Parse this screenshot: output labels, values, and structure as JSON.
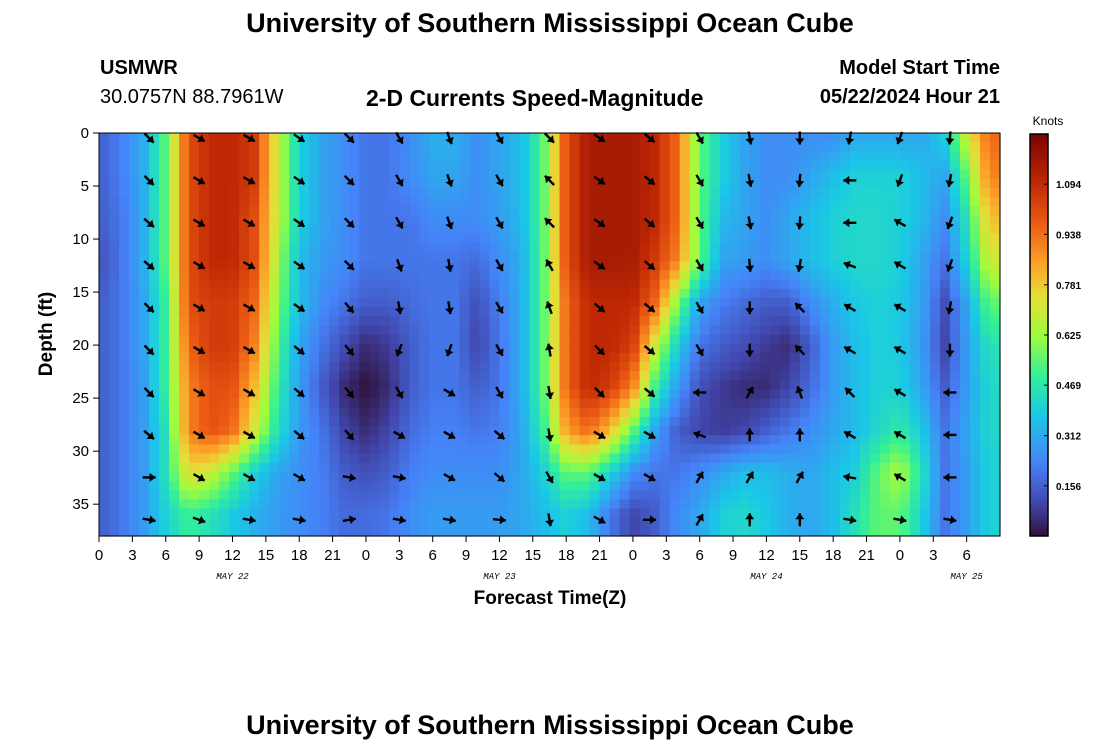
{
  "page": {
    "title": "University of Southern Mississippi Ocean Cube",
    "station": "USMWR",
    "location": "30.0757N  88.7961W",
    "product": "2-D Currents Speed-Magnitude",
    "model_start_label": "Model Start Time",
    "model_start_value": "05/22/2024 Hour 21",
    "footer_title": "University of Southern Mississippi Ocean Cube"
  },
  "chart_data": {
    "type": "heatmap",
    "title": "2-D Currents Speed-Magnitude",
    "xlabel": "Forecast Time(Z)",
    "ylabel": "Depth (ft)",
    "x_hours_from_may22_00": [
      0,
      81
    ],
    "ylim": [
      0,
      38
    ],
    "x_tick_labels": [
      "0",
      "3",
      "6",
      "9",
      "12",
      "15",
      "18",
      "21",
      "0",
      "3",
      "6",
      "9",
      "12",
      "15",
      "18",
      "21",
      "0",
      "3",
      "6",
      "9",
      "12",
      "15",
      "18",
      "21",
      "0",
      "3",
      "6"
    ],
    "date_labels": [
      {
        "text": "MAY 22",
        "hour": 12
      },
      {
        "text": "MAY 23",
        "hour": 36
      },
      {
        "text": "MAY 24",
        "hour": 60
      },
      {
        "text": "MAY 25",
        "hour": 78
      }
    ],
    "y_ticks": [
      0,
      5,
      10,
      15,
      20,
      25,
      30,
      35
    ],
    "colorbar": {
      "label": "Knots",
      "min": 0.0,
      "max": 1.25,
      "ticks": [
        0.156,
        0.312,
        0.469,
        0.625,
        0.781,
        0.938,
        1.094
      ],
      "tick_labels": [
        "0.156",
        "0.312",
        "0.469",
        "0.625",
        "0.781",
        "0.938",
        "1.094"
      ]
    },
    "speed_knots": {
      "time_hours": [
        0,
        2,
        4,
        6,
        8,
        10,
        12,
        14,
        16,
        18,
        20,
        22,
        24,
        26,
        28,
        30,
        32,
        34,
        36,
        38,
        40,
        42,
        44,
        46,
        48,
        50,
        52,
        54,
        56,
        58,
        60,
        62,
        64,
        66,
        68,
        70,
        72,
        74,
        76,
        78,
        80
      ],
      "depth_ft": [
        0,
        4,
        8,
        12,
        16,
        20,
        24,
        28,
        32,
        36
      ],
      "values": [
        [
          0.15,
          0.22,
          0.32,
          0.55,
          1.0,
          1.1,
          1.1,
          1.05,
          0.7,
          0.4,
          0.3,
          0.25,
          0.2,
          0.2,
          0.25,
          0.32,
          0.32,
          0.25,
          0.3,
          0.35,
          0.55,
          1.0,
          1.15,
          1.15,
          1.15,
          1.1,
          0.95,
          0.55,
          0.4,
          0.3,
          0.25,
          0.25,
          0.25,
          0.25,
          0.3,
          0.3,
          0.3,
          0.3,
          0.4,
          0.7,
          0.95
        ],
        [
          0.15,
          0.22,
          0.32,
          0.55,
          1.0,
          1.1,
          1.1,
          1.05,
          0.7,
          0.4,
          0.3,
          0.25,
          0.2,
          0.2,
          0.25,
          0.3,
          0.3,
          0.25,
          0.3,
          0.35,
          0.55,
          1.0,
          1.15,
          1.15,
          1.15,
          1.1,
          0.95,
          0.55,
          0.4,
          0.3,
          0.25,
          0.25,
          0.3,
          0.35,
          0.4,
          0.4,
          0.4,
          0.35,
          0.3,
          0.55,
          0.9
        ],
        [
          0.15,
          0.2,
          0.32,
          0.55,
          1.0,
          1.1,
          1.1,
          1.0,
          0.7,
          0.4,
          0.3,
          0.25,
          0.2,
          0.2,
          0.2,
          0.25,
          0.25,
          0.25,
          0.28,
          0.35,
          0.55,
          1.0,
          1.15,
          1.15,
          1.15,
          1.1,
          0.95,
          0.55,
          0.35,
          0.3,
          0.25,
          0.3,
          0.35,
          0.4,
          0.42,
          0.42,
          0.4,
          0.35,
          0.25,
          0.45,
          0.8
        ],
        [
          0.12,
          0.2,
          0.32,
          0.55,
          1.0,
          1.1,
          1.1,
          1.0,
          0.65,
          0.35,
          0.28,
          0.25,
          0.2,
          0.2,
          0.2,
          0.2,
          0.2,
          0.18,
          0.25,
          0.32,
          0.55,
          1.0,
          1.15,
          1.15,
          1.15,
          1.05,
          0.9,
          0.55,
          0.3,
          0.28,
          0.25,
          0.3,
          0.35,
          0.4,
          0.42,
          0.42,
          0.4,
          0.3,
          0.2,
          0.4,
          0.7
        ],
        [
          0.15,
          0.2,
          0.3,
          0.5,
          1.0,
          1.05,
          1.05,
          0.95,
          0.6,
          0.35,
          0.25,
          0.2,
          0.15,
          0.15,
          0.18,
          0.2,
          0.2,
          0.12,
          0.22,
          0.32,
          0.55,
          0.95,
          1.1,
          1.1,
          1.1,
          0.95,
          0.6,
          0.3,
          0.22,
          0.18,
          0.15,
          0.15,
          0.25,
          0.32,
          0.38,
          0.4,
          0.38,
          0.3,
          0.12,
          0.3,
          0.55
        ],
        [
          0.15,
          0.2,
          0.3,
          0.5,
          0.95,
          1.05,
          1.05,
          0.9,
          0.55,
          0.3,
          0.2,
          0.12,
          0.05,
          0.08,
          0.15,
          0.2,
          0.2,
          0.1,
          0.2,
          0.32,
          0.55,
          0.95,
          1.1,
          1.1,
          1.05,
          0.7,
          0.4,
          0.2,
          0.15,
          0.12,
          0.08,
          0.05,
          0.15,
          0.28,
          0.35,
          0.4,
          0.38,
          0.28,
          0.1,
          0.28,
          0.45
        ],
        [
          0.15,
          0.2,
          0.28,
          0.5,
          0.9,
          1.0,
          1.0,
          0.8,
          0.5,
          0.28,
          0.15,
          0.05,
          0.0,
          0.05,
          0.15,
          0.2,
          0.2,
          0.15,
          0.2,
          0.32,
          0.55,
          0.95,
          1.1,
          1.05,
          0.9,
          0.5,
          0.28,
          0.12,
          0.08,
          0.05,
          0.05,
          0.1,
          0.18,
          0.28,
          0.35,
          0.4,
          0.4,
          0.3,
          0.15,
          0.28,
          0.42
        ],
        [
          0.15,
          0.2,
          0.28,
          0.45,
          0.9,
          1.0,
          0.95,
          0.7,
          0.45,
          0.28,
          0.2,
          0.1,
          0.05,
          0.1,
          0.18,
          0.22,
          0.22,
          0.2,
          0.22,
          0.3,
          0.5,
          0.85,
          0.95,
          0.8,
          0.55,
          0.3,
          0.15,
          0.1,
          0.08,
          0.1,
          0.15,
          0.2,
          0.25,
          0.3,
          0.35,
          0.42,
          0.48,
          0.38,
          0.2,
          0.3,
          0.42
        ],
        [
          0.15,
          0.2,
          0.28,
          0.45,
          0.75,
          0.7,
          0.55,
          0.4,
          0.3,
          0.25,
          0.22,
          0.15,
          0.12,
          0.15,
          0.22,
          0.25,
          0.25,
          0.25,
          0.25,
          0.3,
          0.4,
          0.55,
          0.55,
          0.4,
          0.25,
          0.2,
          0.2,
          0.25,
          0.3,
          0.35,
          0.35,
          0.32,
          0.3,
          0.35,
          0.4,
          0.55,
          0.65,
          0.45,
          0.2,
          0.28,
          0.4
        ],
        [
          0.15,
          0.2,
          0.28,
          0.4,
          0.5,
          0.45,
          0.38,
          0.32,
          0.28,
          0.25,
          0.22,
          0.18,
          0.18,
          0.2,
          0.25,
          0.28,
          0.28,
          0.28,
          0.28,
          0.3,
          0.35,
          0.4,
          0.35,
          0.2,
          0.1,
          0.15,
          0.25,
          0.3,
          0.4,
          0.42,
          0.38,
          0.32,
          0.3,
          0.35,
          0.45,
          0.55,
          0.55,
          0.4,
          0.2,
          0.28,
          0.4
        ]
      ]
    },
    "vectors": {
      "arrow_length_note": "unit direction arrows",
      "time_hours": [
        4.5,
        9,
        13.5,
        18,
        22.5,
        27,
        31.5,
        36,
        40.5,
        45,
        49.5,
        54,
        58.5,
        63,
        67.5,
        72,
        76.5
      ],
      "depth_ft": [
        0,
        4,
        8,
        12,
        16,
        20,
        24,
        28,
        32,
        36
      ],
      "direction_deg_math": [
        [
          -45,
          -30,
          -30,
          -35,
          -45,
          -60,
          -70,
          -60,
          -45,
          -35,
          -40,
          -60,
          -80,
          -90,
          -100,
          -110,
          -95
        ],
        [
          -45,
          -30,
          -30,
          -35,
          -45,
          -60,
          -70,
          -60,
          135,
          -35,
          -40,
          -60,
          -80,
          -95,
          180,
          -110,
          -100
        ],
        [
          -40,
          -30,
          -30,
          -35,
          -45,
          -60,
          -70,
          -60,
          135,
          -35,
          -40,
          -60,
          -80,
          -95,
          180,
          150,
          -110
        ],
        [
          -40,
          -30,
          -30,
          -35,
          -45,
          -70,
          -80,
          -60,
          120,
          -35,
          -40,
          -60,
          -85,
          -100,
          160,
          150,
          -110
        ],
        [
          -45,
          -30,
          -30,
          -35,
          -50,
          -80,
          -80,
          -60,
          110,
          -40,
          -40,
          -60,
          -90,
          135,
          150,
          150,
          -100
        ],
        [
          -45,
          -30,
          -30,
          -40,
          -50,
          -110,
          -110,
          -60,
          100,
          -45,
          -40,
          -60,
          -90,
          135,
          150,
          150,
          -90
        ],
        [
          -45,
          -30,
          -30,
          -40,
          -50,
          -60,
          -30,
          -60,
          -80,
          -45,
          -40,
          180,
          60,
          110,
          135,
          150,
          180
        ],
        [
          -40,
          -30,
          -30,
          -40,
          -50,
          -30,
          -30,
          -40,
          -80,
          -30,
          -30,
          160,
          90,
          90,
          150,
          150,
          180
        ],
        [
          0,
          -30,
          -30,
          -30,
          -10,
          -10,
          -30,
          -40,
          -60,
          -30,
          -30,
          60,
          60,
          60,
          170,
          150,
          180
        ],
        [
          -10,
          -20,
          -10,
          -10,
          10,
          -10,
          -10,
          -5,
          -80,
          -30,
          0,
          60,
          90,
          90,
          -10,
          -10,
          -10
        ]
      ]
    }
  }
}
